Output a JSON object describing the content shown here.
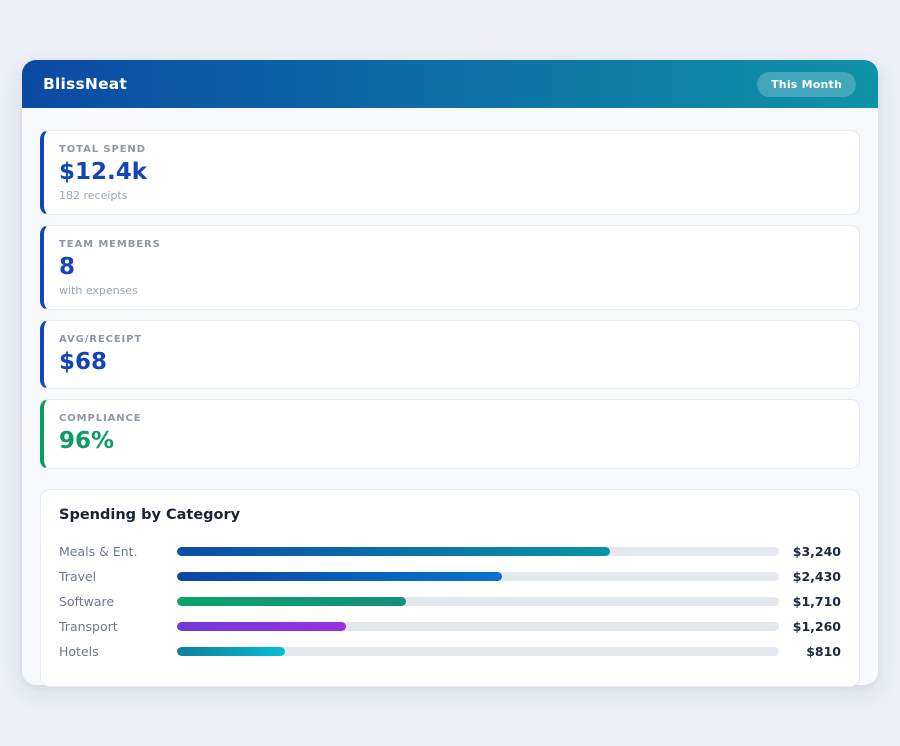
{
  "app": {
    "title": "BlissNeat",
    "period_badge": "This Month",
    "header_gradient": [
      "#0b4aa3",
      "#0f93a8"
    ]
  },
  "stats": [
    {
      "label": "TOTAL SPEND",
      "value": "$12.4k",
      "sub": "182 receipts",
      "accent": "#1149b4",
      "value_color": "#1345b6"
    },
    {
      "label": "TEAM MEMBERS",
      "value": "8",
      "sub": "with expenses",
      "accent": "#1149b4",
      "value_color": "#1345b6"
    },
    {
      "label": "AVG/RECEIPT",
      "value": "$68",
      "sub": "",
      "accent": "#1149b4",
      "value_color": "#1345b6"
    },
    {
      "label": "COMPLIANCE",
      "value": "96%",
      "sub": "",
      "accent": "#0a9a63",
      "value_color": "#0c9a66"
    }
  ],
  "chart_data": {
    "type": "bar",
    "orientation": "horizontal",
    "title": "Spending by Category",
    "categories": [
      "Meals & Ent.",
      "Travel",
      "Software",
      "Transport",
      "Hotels"
    ],
    "values": [
      3240,
      2430,
      1710,
      1260,
      810
    ],
    "value_labels": [
      "$3,240",
      "$2,430",
      "$1,710",
      "$1,260",
      "$810"
    ],
    "xlim": [
      0,
      4500
    ],
    "grid": false,
    "legend": false,
    "track_color": "#e3e8ef",
    "bar_gradients": [
      [
        "#0b4da6",
        "#0a93a6"
      ],
      [
        "#0b47a1",
        "#0a73cf"
      ],
      [
        "#0ba368",
        "#12907e"
      ],
      [
        "#7138d8",
        "#9b30e0"
      ],
      [
        "#0e7e9e",
        "#09bcd4"
      ]
    ]
  }
}
